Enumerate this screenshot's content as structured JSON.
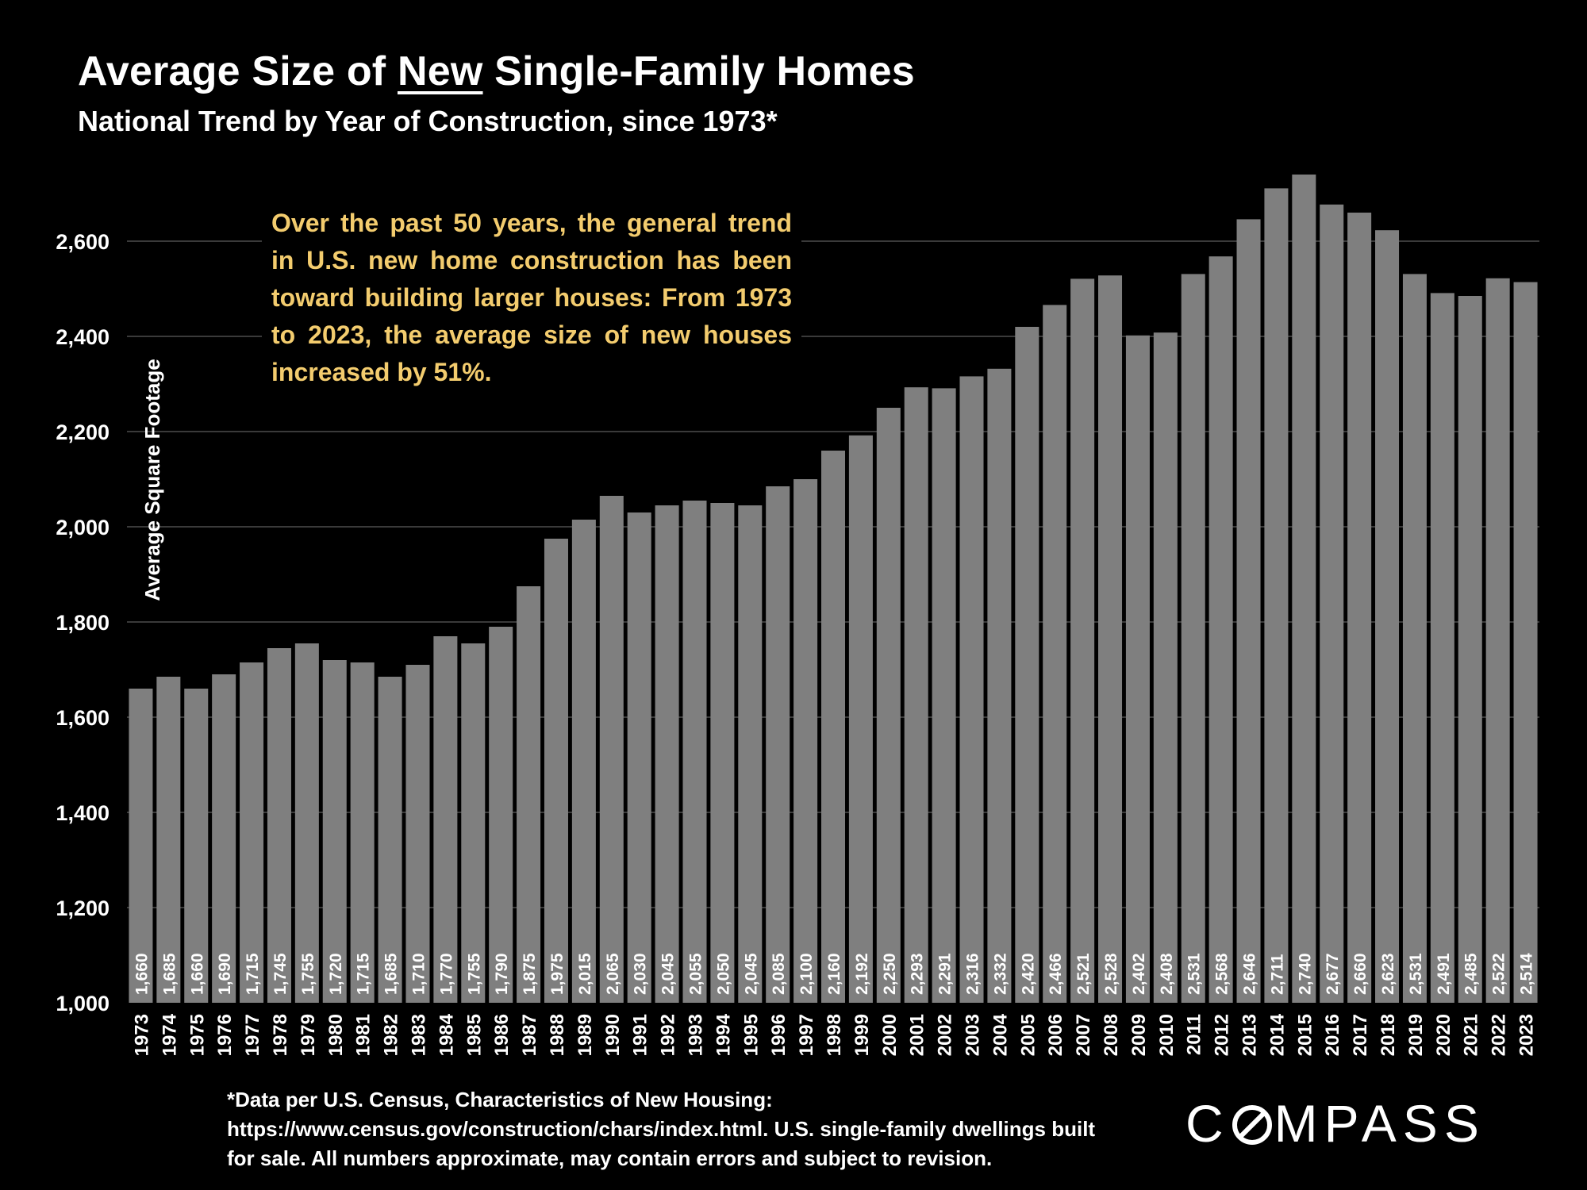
{
  "header": {
    "title_pre": "Average Size of ",
    "title_emph": "New",
    "title_post": " Single-Family Homes",
    "subtitle": "National Trend by Year of Construction, since 1973*"
  },
  "annotation": "Over the past 50 years, the general trend in U.S. new home construction has been toward building larger houses: From 1973 to 2023, the average size of new houses increased by 51%.",
  "footnote": {
    "line1": "*Data per U.S. Census, Characteristics of New Housing:",
    "line2": "https://www.census.gov/construction/chars/index.html. U.S. single-family dwellings built",
    "line3": "for sale. All numbers approximate, may contain errors and subject to revision."
  },
  "logo": {
    "pre": "C",
    "post": "MPASS"
  },
  "colors": {
    "background": "#000000",
    "bar": "#7f7f7f",
    "annotation_text": "#f3cc6e",
    "gridline": "#3a3a3a"
  },
  "chart_data": {
    "type": "bar",
    "title": "Average Size of New Single-Family Homes",
    "subtitle": "National Trend by Year of Construction, since 1973*",
    "xlabel": "",
    "ylabel": "Average Square Footage",
    "ylim": [
      1000,
      2700
    ],
    "yticks": [
      1000,
      1200,
      1400,
      1600,
      1800,
      2000,
      2200,
      2400,
      2600
    ],
    "ytick_labels": [
      "1,000",
      "1,200",
      "1,400",
      "1,600",
      "1,800",
      "2,000",
      "2,200",
      "2,400",
      "2,600"
    ],
    "grid": true,
    "categories": [
      "1973",
      "1974",
      "1975",
      "1976",
      "1977",
      "1978",
      "1979",
      "1980",
      "1981",
      "1982",
      "1983",
      "1984",
      "1985",
      "1986",
      "1987",
      "1988",
      "1989",
      "1990",
      "1991",
      "1992",
      "1993",
      "1994",
      "1995",
      "1996",
      "1997",
      "1998",
      "1999",
      "2000",
      "2001",
      "2002",
      "2003",
      "2004",
      "2005",
      "2006",
      "2007",
      "2008",
      "2009",
      "2010",
      "2011",
      "2012",
      "2013",
      "2014",
      "2015",
      "2016",
      "2017",
      "2018",
      "2019",
      "2020",
      "2021",
      "2022",
      "2023"
    ],
    "values": [
      1660,
      1685,
      1660,
      1690,
      1715,
      1745,
      1755,
      1720,
      1715,
      1685,
      1710,
      1770,
      1755,
      1790,
      1875,
      1975,
      2015,
      2065,
      2030,
      2045,
      2055,
      2050,
      2045,
      2085,
      2100,
      2160,
      2192,
      2250,
      2293,
      2291,
      2316,
      2332,
      2420,
      2466,
      2521,
      2528,
      2402,
      2408,
      2531,
      2568,
      2646,
      2711,
      2740,
      2677,
      2660,
      2623,
      2531,
      2491,
      2485,
      2522,
      2514
    ],
    "value_labels": [
      "1,660",
      "1,685",
      "1,660",
      "1,690",
      "1,715",
      "1,745",
      "1,755",
      "1,720",
      "1,715",
      "1,685",
      "1,710",
      "1,770",
      "1,755",
      "1,790",
      "1,875",
      "1,975",
      "2,015",
      "2,065",
      "2,030",
      "2,045",
      "2,055",
      "2,050",
      "2,045",
      "2,085",
      "2,100",
      "2,160",
      "2,192",
      "2,250",
      "2,293",
      "2,291",
      "2,316",
      "2,332",
      "2,420",
      "2,466",
      "2,521",
      "2,528",
      "2,402",
      "2,408",
      "2,531",
      "2,568",
      "2,646",
      "2,711",
      "2,740",
      "2,677",
      "2,660",
      "2,623",
      "2,531",
      "2,491",
      "2,485",
      "2,522",
      "2,514"
    ]
  }
}
